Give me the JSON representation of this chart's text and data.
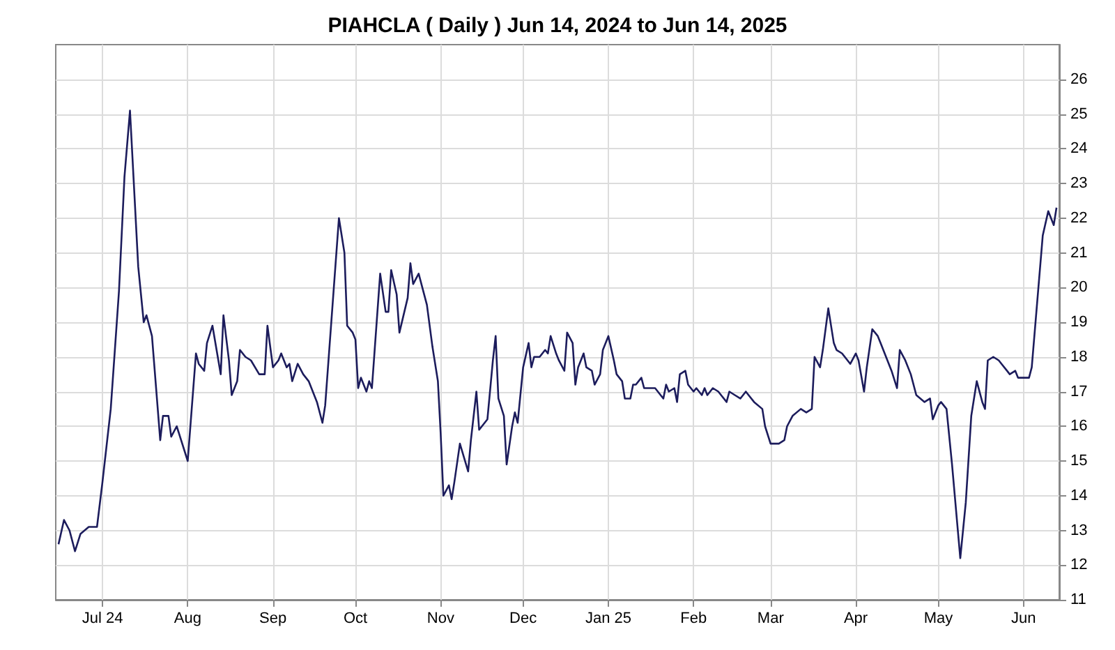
{
  "chart_data": {
    "type": "line",
    "title": "PIAHCLA ( Daily ) Jun 14, 2024 to Jun 14, 2025",
    "x": [
      "2024-06-15",
      "2024-06-17",
      "2024-06-19",
      "2024-06-21",
      "2024-06-23",
      "2024-06-26",
      "2024-06-29",
      "2024-07-01",
      "2024-07-04",
      "2024-07-07",
      "2024-07-09",
      "2024-07-11",
      "2024-07-14",
      "2024-07-16",
      "2024-07-17",
      "2024-07-19",
      "2024-07-22",
      "2024-07-23",
      "2024-07-25",
      "2024-07-26",
      "2024-07-28",
      "2024-08-01",
      "2024-08-04",
      "2024-08-05",
      "2024-08-07",
      "2024-08-08",
      "2024-08-10",
      "2024-08-13",
      "2024-08-14",
      "2024-08-16",
      "2024-08-17",
      "2024-08-19",
      "2024-08-20",
      "2024-08-22",
      "2024-08-24",
      "2024-08-27",
      "2024-08-29",
      "2024-08-30",
      "2024-09-01",
      "2024-09-03",
      "2024-09-04",
      "2024-09-06",
      "2024-09-07",
      "2024-09-08",
      "2024-09-10",
      "2024-09-12",
      "2024-09-14",
      "2024-09-17",
      "2024-09-19",
      "2024-09-20",
      "2024-09-25",
      "2024-09-27",
      "2024-09-28",
      "2024-09-30",
      "2024-10-01",
      "2024-10-02",
      "2024-10-03",
      "2024-10-05",
      "2024-10-06",
      "2024-10-07",
      "2024-10-10",
      "2024-10-12",
      "2024-10-13",
      "2024-10-14",
      "2024-10-16",
      "2024-10-17",
      "2024-10-20",
      "2024-10-21",
      "2024-10-22",
      "2024-10-24",
      "2024-10-27",
      "2024-10-29",
      "2024-10-31",
      "2024-11-01",
      "2024-11-02",
      "2024-11-04",
      "2024-11-05",
      "2024-11-06",
      "2024-11-08",
      "2024-11-11",
      "2024-11-12",
      "2024-11-14",
      "2024-11-15",
      "2024-11-17",
      "2024-11-18",
      "2024-11-20",
      "2024-11-21",
      "2024-11-22",
      "2024-11-24",
      "2024-11-25",
      "2024-11-27",
      "2024-11-28",
      "2024-11-29",
      "2024-12-01",
      "2024-12-03",
      "2024-12-04",
      "2024-12-05",
      "2024-12-07",
      "2024-12-09",
      "2024-12-10",
      "2024-12-11",
      "2024-12-13",
      "2024-12-14",
      "2024-12-16",
      "2024-12-17",
      "2024-12-19",
      "2024-12-20",
      "2024-12-21",
      "2024-12-23",
      "2024-12-24",
      "2024-12-26",
      "2024-12-27",
      "2024-12-29",
      "2024-12-30",
      "2025-01-01",
      "2025-01-03",
      "2025-01-04",
      "2025-01-06",
      "2025-01-07",
      "2025-01-09",
      "2025-01-10",
      "2025-01-11",
      "2025-01-13",
      "2025-01-14",
      "2025-01-16",
      "2025-01-18",
      "2025-01-20",
      "2025-01-21",
      "2025-01-22",
      "2025-01-23",
      "2025-01-25",
      "2025-01-26",
      "2025-01-27",
      "2025-01-29",
      "2025-01-30",
      "2025-02-01",
      "2025-02-02",
      "2025-02-04",
      "2025-02-05",
      "2025-02-06",
      "2025-02-08",
      "2025-02-10",
      "2025-02-11",
      "2025-02-13",
      "2025-02-14",
      "2025-02-16",
      "2025-02-18",
      "2025-02-20",
      "2025-02-21",
      "2025-02-23",
      "2025-02-26",
      "2025-02-27",
      "2025-03-01",
      "2025-03-04",
      "2025-03-06",
      "2025-03-07",
      "2025-03-09",
      "2025-03-12",
      "2025-03-14",
      "2025-03-16",
      "2025-03-17",
      "2025-03-19",
      "2025-03-20",
      "2025-03-22",
      "2025-03-24",
      "2025-03-25",
      "2025-03-27",
      "2025-03-30",
      "2025-04-01",
      "2025-04-02",
      "2025-04-04",
      "2025-04-05",
      "2025-04-07",
      "2025-04-09",
      "2025-04-10",
      "2025-04-12",
      "2025-04-14",
      "2025-04-16",
      "2025-04-17",
      "2025-04-19",
      "2025-04-21",
      "2025-04-23",
      "2025-04-26",
      "2025-04-28",
      "2025-04-29",
      "2025-05-01",
      "2025-05-02",
      "2025-05-04",
      "2025-05-06",
      "2025-05-09",
      "2025-05-11",
      "2025-05-13",
      "2025-05-15",
      "2025-05-17",
      "2025-05-18",
      "2025-05-19",
      "2025-05-21",
      "2025-05-23",
      "2025-05-24",
      "2025-05-26",
      "2025-05-27",
      "2025-05-29",
      "2025-05-30",
      "2025-06-03",
      "2025-06-04",
      "2025-06-08",
      "2025-06-10",
      "2025-06-12",
      "2025-06-13"
    ],
    "series": [
      {
        "color": "#1c1c5c",
        "values": [
          12.6,
          13.3,
          13.0,
          12.4,
          12.9,
          13.1,
          13.1,
          14.4,
          16.5,
          19.9,
          23.2,
          25.1,
          20.6,
          19.0,
          19.2,
          18.6,
          15.6,
          16.3,
          16.3,
          15.7,
          16.0,
          15.0,
          18.1,
          17.8,
          17.6,
          18.4,
          18.9,
          17.5,
          19.2,
          17.9,
          16.9,
          17.3,
          18.2,
          18.0,
          17.9,
          17.5,
          17.5,
          18.9,
          17.7,
          17.9,
          18.1,
          17.7,
          17.8,
          17.3,
          17.8,
          17.5,
          17.3,
          16.7,
          16.1,
          16.6,
          22.0,
          21.0,
          18.9,
          18.7,
          18.5,
          17.1,
          17.4,
          17.0,
          17.3,
          17.1,
          20.4,
          19.3,
          19.3,
          20.5,
          19.8,
          18.7,
          19.7,
          20.7,
          20.1,
          20.4,
          19.5,
          18.3,
          17.3,
          15.8,
          14.0,
          14.3,
          13.9,
          14.4,
          15.5,
          14.7,
          15.6,
          17.0,
          15.9,
          16.1,
          16.2,
          17.9,
          18.6,
          16.8,
          16.3,
          14.9,
          16.0,
          16.4,
          16.1,
          17.7,
          18.4,
          17.7,
          18.0,
          18.0,
          18.2,
          18.1,
          18.6,
          18.1,
          17.9,
          17.6,
          18.7,
          18.4,
          17.2,
          17.7,
          18.1,
          17.7,
          17.6,
          17.2,
          17.5,
          18.2,
          18.6,
          17.9,
          17.5,
          17.3,
          16.8,
          16.8,
          17.2,
          17.2,
          17.4,
          17.1,
          17.1,
          17.1,
          16.9,
          16.8,
          17.2,
          17.0,
          17.1,
          16.7,
          17.5,
          17.6,
          17.2,
          17.0,
          17.1,
          16.9,
          17.1,
          16.9,
          17.1,
          17.0,
          16.9,
          16.7,
          17.0,
          16.9,
          16.8,
          17.0,
          16.9,
          16.7,
          16.5,
          16.0,
          15.5,
          15.5,
          15.6,
          16.0,
          16.3,
          16.5,
          16.4,
          16.5,
          18.0,
          17.7,
          18.2,
          19.4,
          18.4,
          18.2,
          18.1,
          17.8,
          18.1,
          17.9,
          17.0,
          17.7,
          18.8,
          18.6,
          18.4,
          18.0,
          17.6,
          17.1,
          18.2,
          17.9,
          17.5,
          16.9,
          16.7,
          16.8,
          16.2,
          16.6,
          16.7,
          16.5,
          14.9,
          12.2,
          13.8,
          16.3,
          17.3,
          16.7,
          16.5,
          17.9,
          18.0,
          17.9,
          17.8,
          17.6,
          17.5,
          17.6,
          17.4,
          17.4,
          17.7,
          21.5,
          22.2,
          21.8,
          22.3
        ]
      }
    ],
    "xlim": [
      "2024-06-14",
      "2025-06-14"
    ],
    "xticks": [
      {
        "value": "2024-07-01",
        "label": "Jul 24"
      },
      {
        "value": "2024-08-01",
        "label": "Aug"
      },
      {
        "value": "2024-09-01",
        "label": "Sep"
      },
      {
        "value": "2024-10-01",
        "label": "Oct"
      },
      {
        "value": "2024-11-01",
        "label": "Nov"
      },
      {
        "value": "2024-12-01",
        "label": "Dec"
      },
      {
        "value": "2025-01-01",
        "label": "Jan 25"
      },
      {
        "value": "2025-02-01",
        "label": "Feb"
      },
      {
        "value": "2025-03-01",
        "label": "Mar"
      },
      {
        "value": "2025-04-01",
        "label": "Apr"
      },
      {
        "value": "2025-05-01",
        "label": "May"
      },
      {
        "value": "2025-06-01",
        "label": "Jun"
      }
    ],
    "ylim": [
      11,
      27
    ],
    "yticks": [
      11,
      12,
      13,
      14,
      15,
      16,
      17,
      18,
      19,
      20,
      21,
      22,
      23,
      24,
      25,
      26
    ],
    "grid": true,
    "marker": "none",
    "line_style": "solid"
  }
}
